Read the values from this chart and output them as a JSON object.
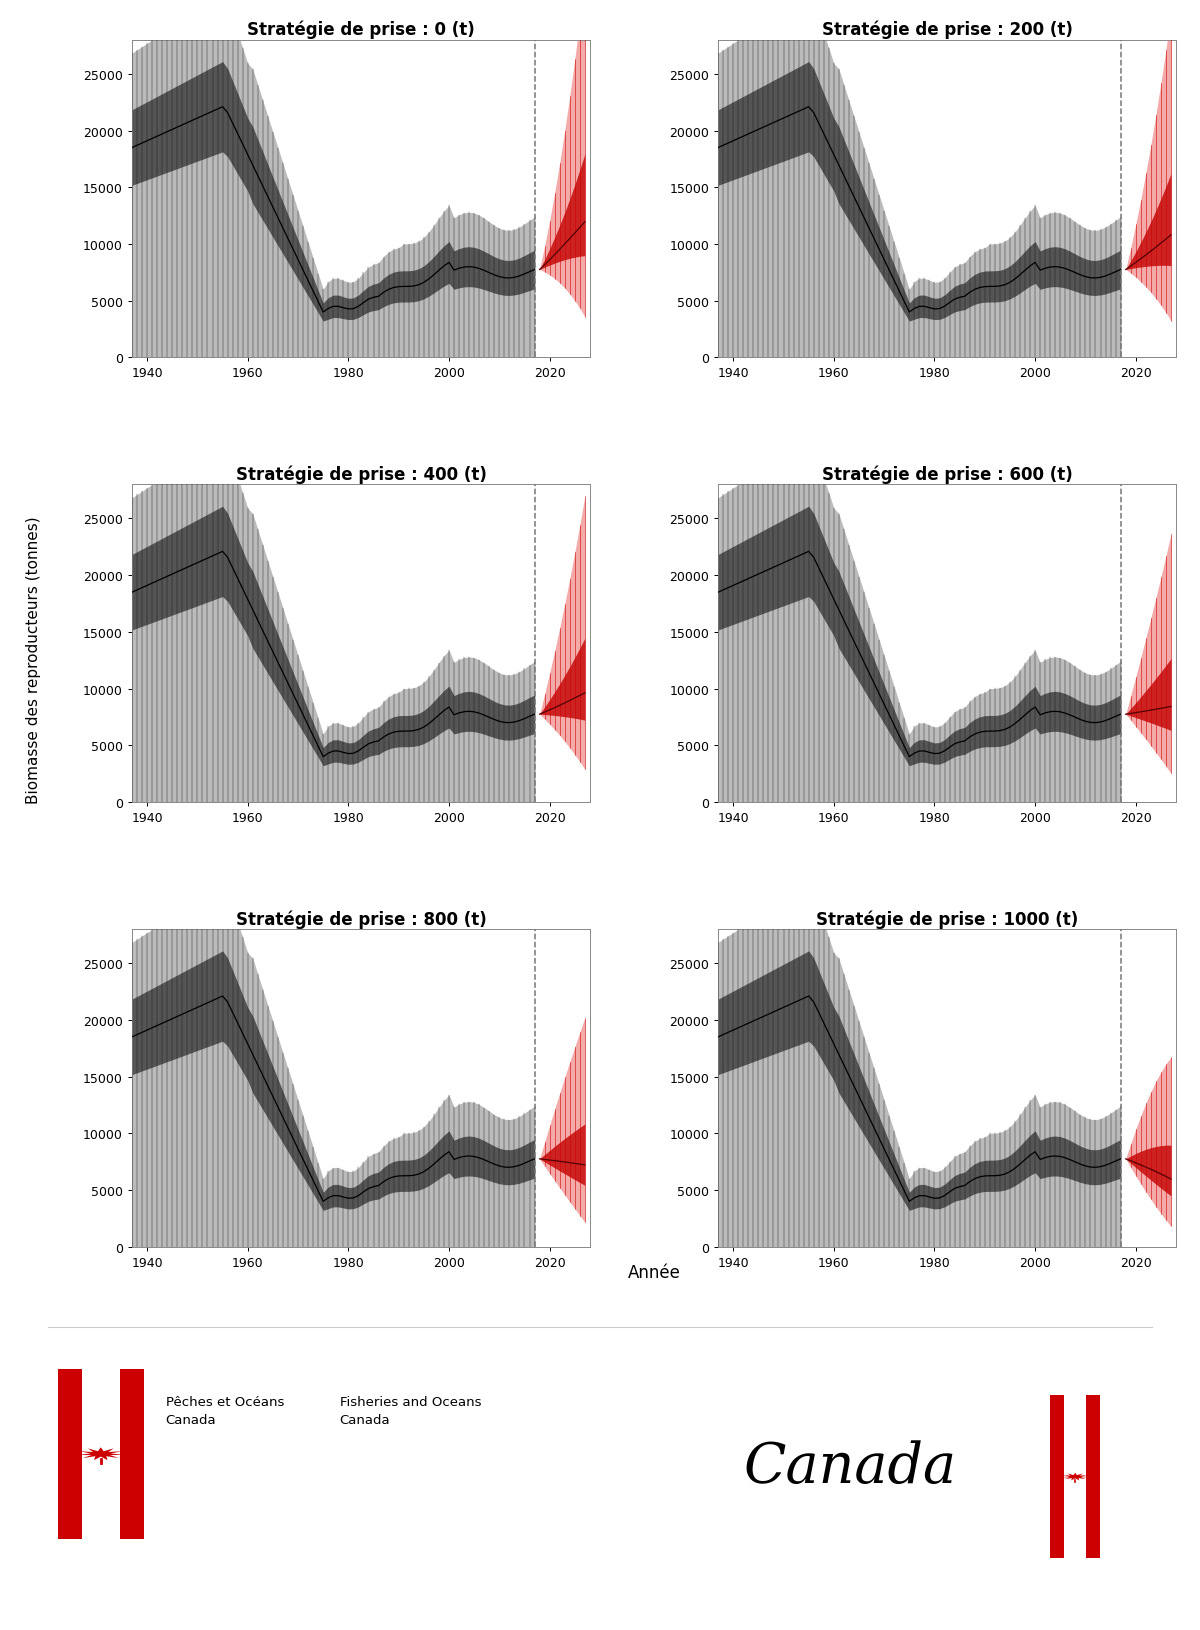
{
  "panels": [
    {
      "title": "Stratégie de prise : 0 (t)"
    },
    {
      "title": "Stratégie de prise : 200 (t)"
    },
    {
      "title": "Stratégie de prise : 400 (t)"
    },
    {
      "title": "Stratégie de prise : 600 (t)"
    },
    {
      "title": "Stratégie de prise : 800 (t)"
    },
    {
      "title": "Stratégie de prise : 1000 (t)"
    }
  ],
  "catches": [
    0,
    200,
    400,
    600,
    800,
    1000
  ],
  "ylabel": "Biomasse des reproducteurs (tonnes)",
  "xlabel": "Année",
  "hist_start": 1937,
  "hist_end": 2017,
  "proj_start": 2018,
  "proj_end": 2027,
  "cutoff_year": 2017,
  "ylim": [
    0,
    28000
  ],
  "yticks": [
    0,
    5000,
    10000,
    15000,
    20000,
    25000
  ],
  "xticks": [
    1940,
    1960,
    1980,
    2000,
    2020
  ],
  "xlim_left": 1937,
  "xlim_right": 2028,
  "col_hist_outer": "#bbbbbb",
  "col_hist_inner": "#555555",
  "col_hist_vert": "#111111",
  "col_hist_median": "#000000",
  "col_proj_outer": "#f5aaaa",
  "col_proj_inner": "#cc2222",
  "col_proj_vert": "#cc0000",
  "col_proj_median": "#550000",
  "col_dashed": "#777777",
  "title_fontsize": 12,
  "label_fontsize": 11,
  "tick_fontsize": 9,
  "footer_text1": "Pêches et Océans\nCanada",
  "footer_text2": "Fisheries and Oceans\nCanada",
  "footer_canada": "Canada"
}
